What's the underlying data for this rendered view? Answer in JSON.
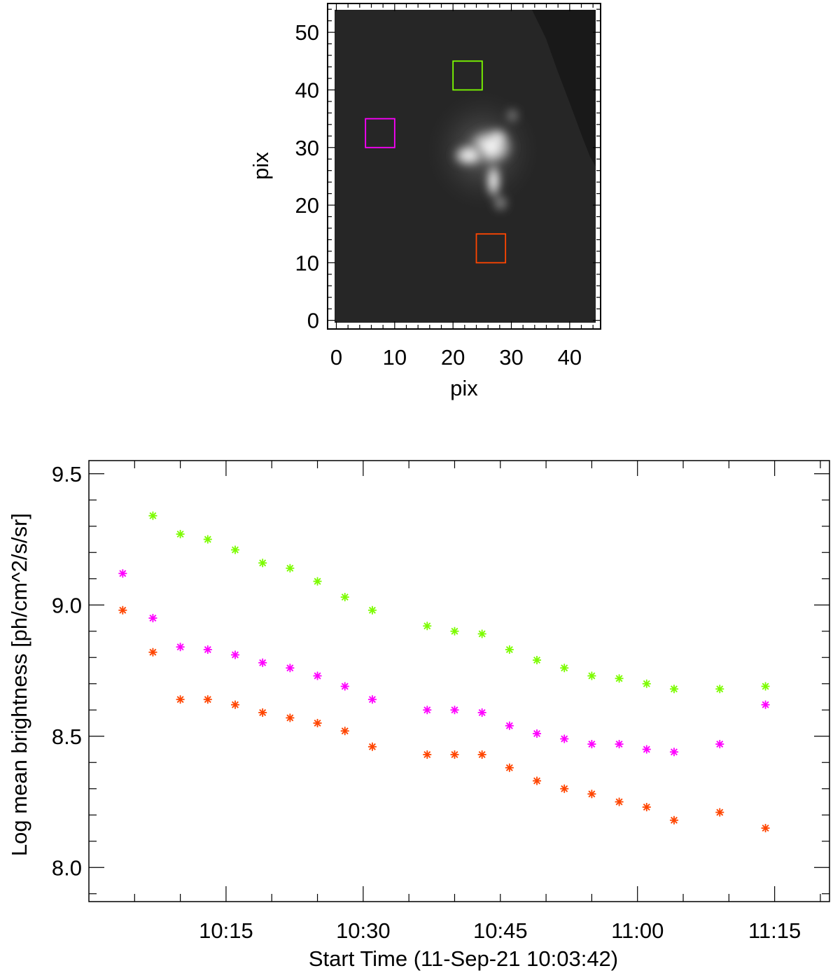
{
  "chart_data": [
    {
      "type": "image",
      "xlabel": "pix",
      "ylabel": "pix",
      "xlim": [
        -1.5,
        45.3
      ],
      "ylim": [
        -1.5,
        55
      ],
      "xticks": [
        0,
        10,
        20,
        30,
        40
      ],
      "yticks": [
        0,
        10,
        20,
        30,
        40,
        50
      ],
      "image_extent": {
        "x": [
          -0.5,
          44.5
        ],
        "y": [
          -0.5,
          54.5
        ]
      },
      "background_color": "#262626",
      "regions": [
        {
          "color": "#7cfc00",
          "x": [
            20,
            25
          ],
          "y": [
            40,
            45
          ]
        },
        {
          "color": "#ff00ff",
          "x": [
            5,
            10
          ],
          "y": [
            30,
            35
          ]
        },
        {
          "color": "#ff4500",
          "x": [
            24,
            29
          ],
          "y": [
            10,
            15
          ]
        }
      ]
    },
    {
      "type": "scatter",
      "xlabel": "Start Time (11-Sep-21 10:03:42)",
      "ylabel": "Log mean brightness [ph/cm^2/s/sr]",
      "x_unit": "minutes after 10:03:42",
      "xlim": [
        -3.7,
        77.3
      ],
      "ylim": [
        7.87,
        9.55
      ],
      "xticks": [
        {
          "value": 11.3,
          "label": "10:15"
        },
        {
          "value": 26.3,
          "label": "10:30"
        },
        {
          "value": 41.3,
          "label": "10:45"
        },
        {
          "value": 56.3,
          "label": "11:00"
        },
        {
          "value": 71.3,
          "label": "11:15"
        }
      ],
      "yticks": [
        8.0,
        8.5,
        9.0,
        9.5
      ],
      "ytick_labels": [
        "8.0",
        "8.5",
        "9.0",
        "9.5"
      ],
      "marker": "asterisk",
      "x": [
        0,
        3.3,
        6.3,
        9.3,
        12.3,
        15.3,
        18.3,
        21.3,
        24.3,
        27.3,
        33.3,
        36.3,
        39.3,
        42.3,
        45.3,
        48.3,
        51.3,
        54.3,
        57.3,
        60.3,
        65.3,
        70.3
      ],
      "series": [
        {
          "color": "#7cfc00",
          "values": [
            null,
            9.34,
            9.27,
            9.25,
            9.21,
            9.16,
            9.14,
            9.09,
            9.03,
            8.98,
            8.92,
            8.9,
            8.89,
            8.83,
            8.79,
            8.76,
            8.73,
            8.72,
            8.7,
            8.68,
            8.68,
            8.69
          ]
        },
        {
          "color": "#ff00ff",
          "values": [
            9.12,
            8.95,
            8.84,
            8.83,
            8.81,
            8.78,
            8.76,
            8.73,
            8.69,
            8.64,
            8.6,
            8.6,
            8.59,
            8.54,
            8.51,
            8.49,
            8.47,
            8.47,
            8.45,
            8.44,
            8.47,
            8.62
          ]
        },
        {
          "color": "#ff4500",
          "values": [
            8.98,
            8.82,
            8.64,
            8.64,
            8.62,
            8.59,
            8.57,
            8.55,
            8.52,
            8.46,
            8.43,
            8.43,
            8.43,
            8.38,
            8.33,
            8.3,
            8.28,
            8.25,
            8.23,
            8.18,
            8.21,
            8.15
          ]
        }
      ]
    }
  ]
}
